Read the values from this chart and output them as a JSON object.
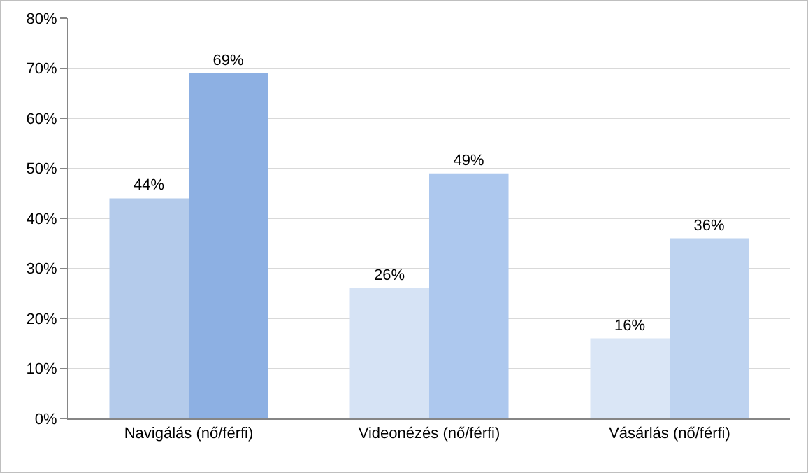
{
  "chart_data": {
    "type": "bar",
    "categories": [
      "Navigálás (nő/férfi)",
      "Videonézés (nő/férfi)",
      "Vásárlás (nő/férfi)"
    ],
    "series": [
      {
        "colors": [
          "#b4cbeb",
          "#d6e3f5",
          "#dae6f6"
        ],
        "values": [
          44,
          26,
          16
        ],
        "value_labels": [
          "44%",
          "26%",
          "16%"
        ]
      },
      {
        "colors": [
          "#8db0e3",
          "#adc8ee",
          "#bed3f0"
        ],
        "values": [
          69,
          49,
          36
        ],
        "value_labels": [
          "69%",
          "49%",
          "36%"
        ]
      }
    ],
    "ylim": [
      0,
      80
    ],
    "yticks": [
      {
        "value": 0,
        "label": "0%"
      },
      {
        "value": 10,
        "label": "10%"
      },
      {
        "value": 20,
        "label": "20%"
      },
      {
        "value": 30,
        "label": "30%"
      },
      {
        "value": 40,
        "label": "40%"
      },
      {
        "value": 50,
        "label": "50%"
      },
      {
        "value": 60,
        "label": "60%"
      },
      {
        "value": 70,
        "label": "70%"
      },
      {
        "value": 80,
        "label": "80%"
      }
    ],
    "grid": "y"
  }
}
